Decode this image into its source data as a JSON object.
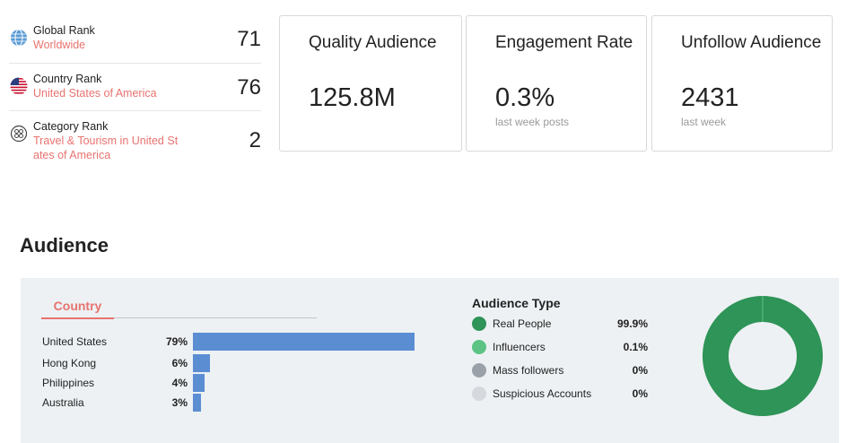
{
  "ranks": [
    {
      "label": "Global Rank",
      "sub": "Worldwide",
      "value": "71",
      "icon": "globe-icon"
    },
    {
      "label": "Country Rank",
      "sub": "United States of America",
      "value": "76",
      "icon": "us-flag-icon"
    },
    {
      "label": "Category Rank",
      "sub": "Travel & Tourism in United St ates of America",
      "value": "2",
      "icon": "category-icon"
    }
  ],
  "cards": [
    {
      "title": "Quality Audience",
      "value": "125.8M",
      "sub": ""
    },
    {
      "title": "Engagement Rate",
      "value": "0.3%",
      "sub": "last week posts"
    },
    {
      "title": "Unfollow Audience",
      "value": "2431",
      "sub": "last week"
    }
  ],
  "audience": {
    "title": "Audience",
    "country_tab": "Country",
    "countries": [
      {
        "name": "United States",
        "pct_label": "79%",
        "pct": 79
      },
      {
        "name": "Hong Kong",
        "pct_label": "6%",
        "pct": 6
      },
      {
        "name": "Philippines",
        "pct_label": "4%",
        "pct": 4
      },
      {
        "name": "Australia",
        "pct_label": "3%",
        "pct": 3
      }
    ],
    "type_title": "Audience Type",
    "types": [
      {
        "label": "Real People",
        "pct_label": "99.9%",
        "pct": 99.9,
        "color": "#2e9457"
      },
      {
        "label": "Influencers",
        "pct_label": "0.1%",
        "pct": 0.1,
        "color": "#5cc384"
      },
      {
        "label": "Mass followers",
        "pct_label": "0%",
        "pct": 0,
        "color": "#9aa1a8"
      },
      {
        "label": "Suspicious Accounts",
        "pct_label": "0%",
        "pct": 0,
        "color": "#d5d9dd"
      }
    ]
  },
  "colors": {
    "accent": "#e8736f",
    "bar": "#5b8dd3",
    "donut": "#2e9457"
  }
}
